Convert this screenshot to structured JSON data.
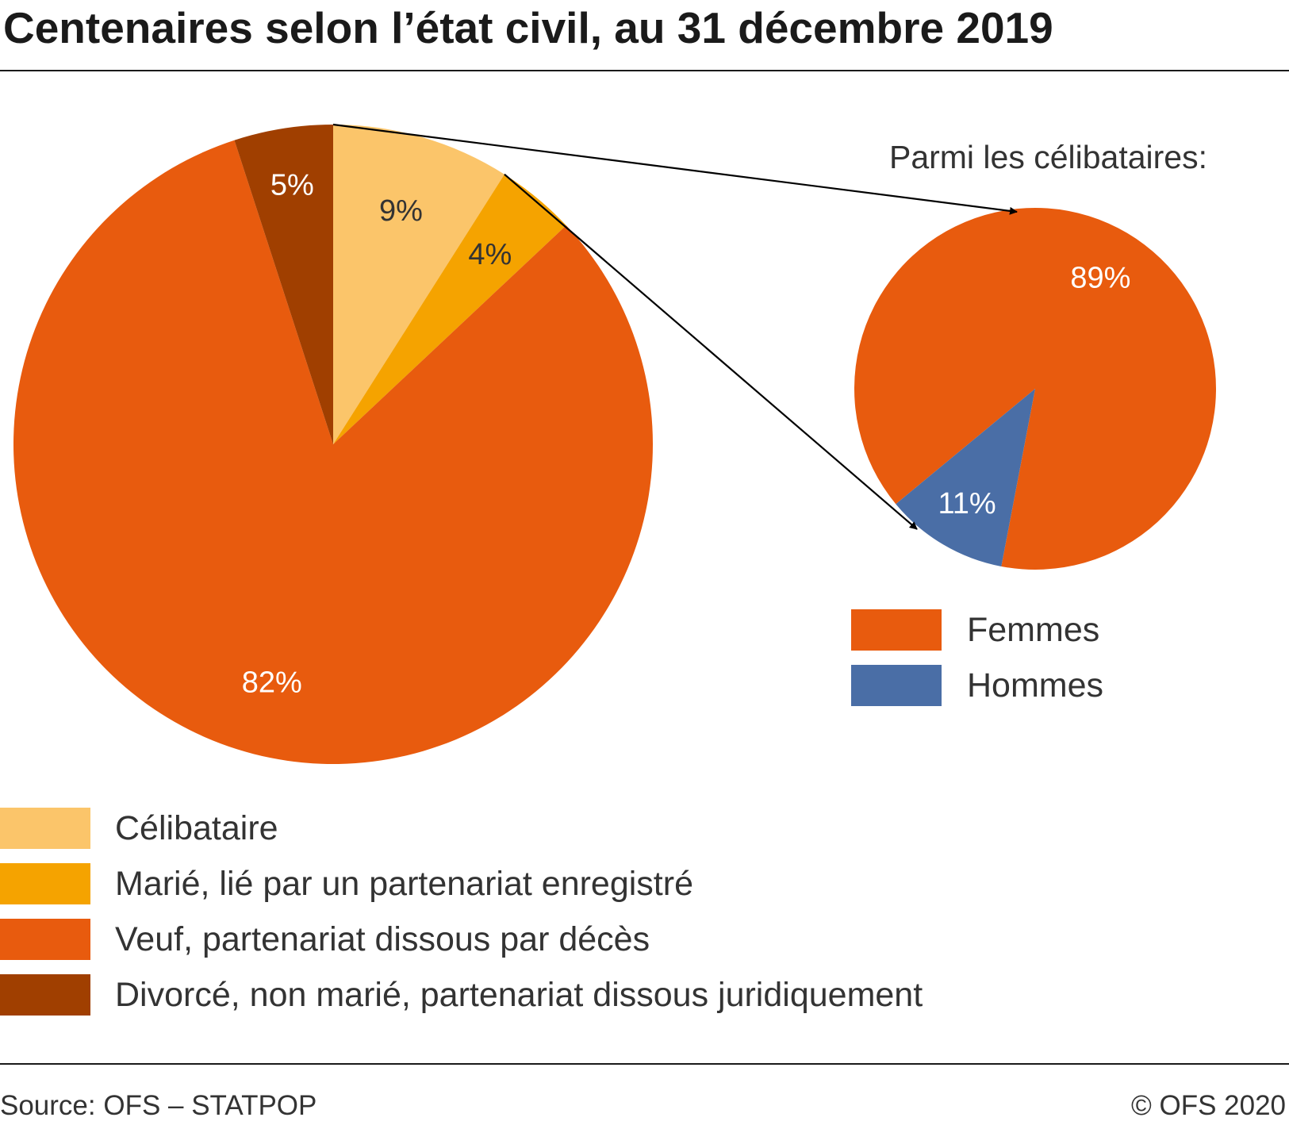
{
  "title": "Centenaires selon l’état civil, au 31 décembre 2019",
  "chart_data": [
    {
      "type": "pie",
      "categories": [
        "Célibataire",
        "Marié, lié par un partenariat enregistré",
        "Veuf, partenariat dissous par décès",
        "Divorcé, non marié, partenariat dissous juridiquement"
      ],
      "values": [
        9,
        4,
        82,
        5
      ],
      "data_labels": [
        "9%",
        "4%",
        "82%",
        "5%"
      ],
      "colors": [
        "#fbc56a",
        "#f5a300",
        "#e85b0e",
        "#a03f00"
      ],
      "label_colors": [
        "#333333",
        "#333333",
        "#ffffff",
        "#ffffff"
      ],
      "start_angle_deg": 0,
      "direction": "clockwise",
      "legend": [
        {
          "label": "Célibataire",
          "color": "#fbc56a"
        },
        {
          "label": "Marié, lié par un partenariat enregistré",
          "color": "#f5a300"
        },
        {
          "label": "Veuf, partenariat dissous par décès",
          "color": "#e85b0e"
        },
        {
          "label": "Divorcé, non marié, partenariat dissous juridiquement",
          "color": "#a03f00"
        }
      ],
      "legend_position": "bottom-left"
    },
    {
      "type": "pie",
      "title": "Parmi les célibataires:",
      "categories": [
        "Femmes",
        "Hommes"
      ],
      "values": [
        89,
        11
      ],
      "data_labels": [
        "89%",
        "11%"
      ],
      "colors": [
        "#e85b0e",
        "#4a6ea6"
      ],
      "label_colors": [
        "#ffffff",
        "#ffffff"
      ],
      "start_angle_deg": 230.4,
      "direction": "clockwise",
      "legend": [
        {
          "label": "Femmes",
          "color": "#e85b0e"
        },
        {
          "label": "Hommes",
          "color": "#4a6ea6"
        }
      ],
      "legend_position": "bottom"
    }
  ],
  "footer": {
    "source": "Source: OFS – STATPOP",
    "copyright": "© OFS 2020"
  }
}
